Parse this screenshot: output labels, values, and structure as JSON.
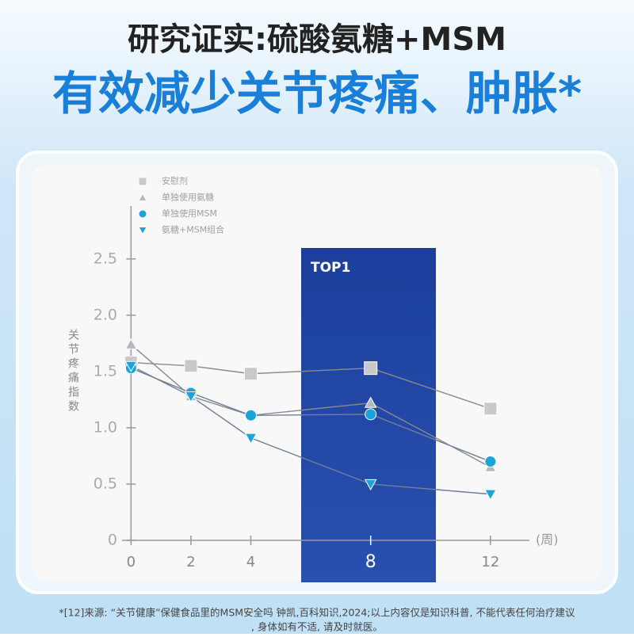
{
  "header": {
    "title": "研究证实:硫酸氨糖+MSM",
    "subtitle": "有效减少关节疼痛、肿胀*"
  },
  "chart_data": {
    "type": "line",
    "x": [
      0,
      2,
      4,
      8,
      12
    ],
    "xlim": [
      -0.3,
      13.3
    ],
    "ylim": [
      0,
      2.9
    ],
    "xticks": [
      0,
      2,
      4,
      8,
      12
    ],
    "yticks": [
      0,
      0.5,
      {
        "value": 1,
        "label": "1.0"
      },
      1.5,
      {
        "value": 2,
        "label": "2.0"
      },
      2.5
    ],
    "y_label": "关节疼痛指数",
    "x_label": "(周)",
    "highlight_label": "TOP1",
    "series": [
      {
        "name": "安慰剂",
        "color": "#c9c9cc",
        "marker": "square",
        "values": [
          1.58,
          1.55,
          1.48,
          1.53,
          1.17
        ]
      },
      {
        "name": "单独使用氨糖",
        "color": "#b4b8c4",
        "marker": "triangle",
        "values": [
          1.74,
          1.28,
          1.11,
          1.22,
          0.65
        ]
      },
      {
        "name": "单独使用MSM",
        "color": "#1ba3da",
        "marker": "circle",
        "values": [
          1.53,
          1.31,
          1.11,
          1.12,
          0.7
        ]
      },
      {
        "name": "氨糖+MSM组合",
        "color": "#1ba3da",
        "marker": "down-triangle",
        "values": [
          1.55,
          1.28,
          0.91,
          0.5,
          0.41
        ]
      }
    ]
  },
  "footnote": [
    "*[12]来源: “关节健康”保健食品里的MSM安全吗 钟凯,百科知识,2024;以上内容仅是知识科普, 不能代表任何治疗建议",
    ", 身体如有不适, 请及时就医。"
  ]
}
